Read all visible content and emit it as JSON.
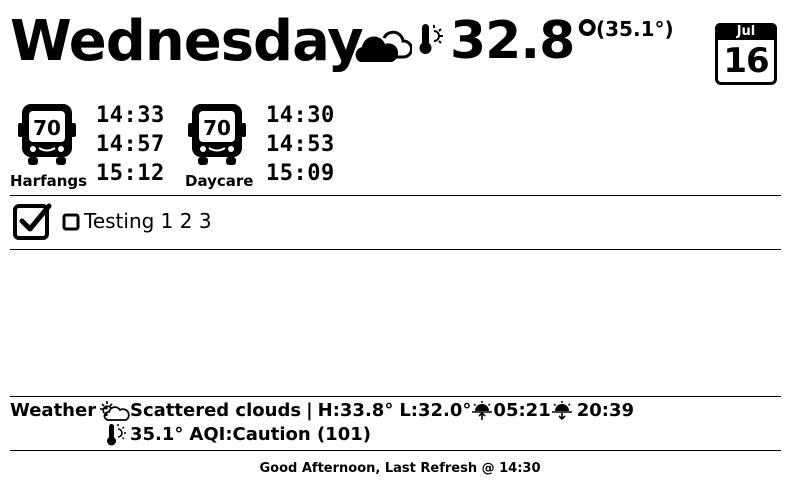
{
  "header": {
    "day": "Wednesday",
    "weather_icon": "cloud-sun-icon",
    "thermo_icon": "thermometer-sun-icon",
    "temperature": "32.8°",
    "feels_like": "(35.1°)"
  },
  "calendar": {
    "month": "Jul",
    "day": "16"
  },
  "buses": [
    {
      "route": "70",
      "stop": "Harfangs",
      "times": [
        "14:33",
        "14:57",
        "15:12"
      ]
    },
    {
      "route": "70",
      "stop": "Daycare",
      "times": [
        "14:30",
        "14:53",
        "15:09"
      ]
    }
  ],
  "todo": {
    "icon": "checklist-icon",
    "items": [
      {
        "text": "Testing 1 2 3",
        "done": false
      }
    ]
  },
  "weather": {
    "label": "Weather :",
    "condition": "Scattered clouds",
    "separator": "|",
    "high": "H:33.8°",
    "low": "L:32.0°",
    "sunrise": "05:21",
    "sunset": "20:39",
    "feels": "35.1°",
    "aqi": "AQI:Caution (101)"
  },
  "footer": {
    "text": "Good Afternoon, Last Refresh @ 14:30"
  }
}
